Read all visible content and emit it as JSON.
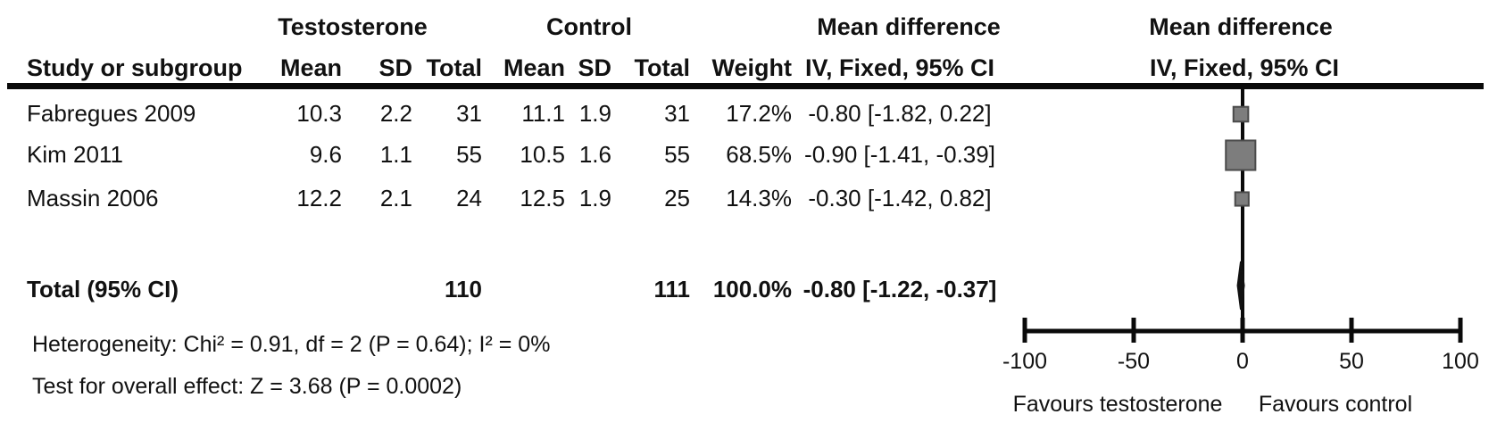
{
  "table": {
    "group_headers": {
      "testosterone": "Testosterone",
      "control": "Control",
      "mean_difference_left": "Mean difference",
      "mean_difference_right": "Mean difference"
    },
    "column_headers": {
      "study": "Study or subgroup",
      "t_mean": "Mean",
      "t_sd": "SD",
      "t_total": "Total",
      "c_mean": "Mean",
      "c_sd": "SD",
      "c_total": "Total",
      "weight": "Weight",
      "ci_left": "IV, Fixed, 95% CI",
      "ci_right": "IV, Fixed, 95% CI"
    },
    "rows": [
      {
        "study": "Fabregues 2009",
        "t_mean": "10.3",
        "t_sd": "2.2",
        "t_total": "31",
        "c_mean": "11.1",
        "c_sd": "1.9",
        "c_total": "31",
        "weight": "17.2%",
        "ci": "-0.80 [-1.82, 0.22]"
      },
      {
        "study": "Kim 2011",
        "t_mean": "9.6",
        "t_sd": "1.1",
        "t_total": "55",
        "c_mean": "10.5",
        "c_sd": "1.6",
        "c_total": "55",
        "weight": "68.5%",
        "ci": "-0.90 [-1.41, -0.39]"
      },
      {
        "study": "Massin 2006",
        "t_mean": "12.2",
        "t_sd": "2.1",
        "t_total": "24",
        "c_mean": "12.5",
        "c_sd": "1.9",
        "c_total": "25",
        "weight": "14.3%",
        "ci": "-0.30 [-1.42, 0.82]"
      }
    ],
    "total_row": {
      "label": "Total (95% CI)",
      "t_total": "110",
      "c_total": "111",
      "weight": "100.0%",
      "ci": "-0.80 [-1.22, -0.37]"
    },
    "footnotes": {
      "heterogeneity": "Heterogeneity: Chi² = 0.91, df = 2 (P = 0.64); I² = 0%",
      "overall_effect": "Test for overall effect: Z = 3.68 (P = 0.0002)"
    }
  },
  "plot": {
    "tick_labels": [
      "-100",
      "-50",
      "0",
      "50",
      "100"
    ],
    "favours_left": "Favours testosterone",
    "favours_right": "Favours control",
    "marker_fill": "#7d7d7d",
    "marker_border": "#4a4a4a",
    "line_color": "#0a0a0a",
    "diamond_color": "#111111"
  },
  "chart_data": {
    "type": "forest",
    "title": "Mean difference",
    "effect_measure": "IV, Fixed, 95% CI",
    "x_axis": {
      "min": -100,
      "max": 100,
      "ticks": [
        -100,
        -50,
        0,
        50,
        100
      ],
      "label_left": "Favours testosterone",
      "label_right": "Favours control"
    },
    "studies": [
      {
        "name": "Fabregues 2009",
        "testosterone": {
          "mean": 10.3,
          "sd": 2.2,
          "total": 31
        },
        "control": {
          "mean": 11.1,
          "sd": 1.9,
          "total": 31
        },
        "weight_pct": 17.2,
        "md": -0.8,
        "ci": [
          -1.82,
          0.22
        ]
      },
      {
        "name": "Kim 2011",
        "testosterone": {
          "mean": 9.6,
          "sd": 1.1,
          "total": 55
        },
        "control": {
          "mean": 10.5,
          "sd": 1.6,
          "total": 55
        },
        "weight_pct": 68.5,
        "md": -0.9,
        "ci": [
          -1.41,
          -0.39
        ]
      },
      {
        "name": "Massin 2006",
        "testosterone": {
          "mean": 12.2,
          "sd": 2.1,
          "total": 24
        },
        "control": {
          "mean": 12.5,
          "sd": 1.9,
          "total": 25
        },
        "weight_pct": 14.3,
        "md": -0.3,
        "ci": [
          -1.42,
          0.82
        ]
      }
    ],
    "total": {
      "label": "Total (95% CI)",
      "testosterone_total": 110,
      "control_total": 111,
      "weight_pct": 100.0,
      "md": -0.8,
      "ci": [
        -1.22,
        -0.37
      ]
    },
    "heterogeneity": {
      "chi2": 0.91,
      "df": 2,
      "p": 0.64,
      "i2_pct": 0
    },
    "overall_effect": {
      "z": 3.68,
      "p": 0.0002
    }
  }
}
